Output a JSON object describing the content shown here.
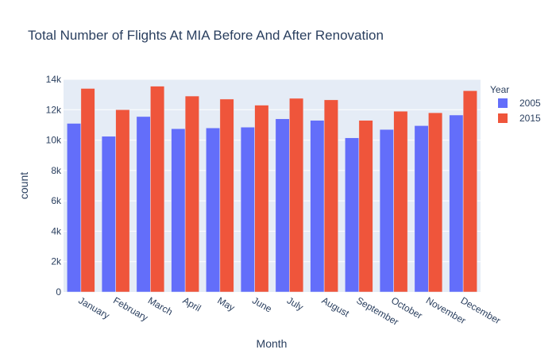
{
  "chart_data": {
    "type": "bar",
    "title": "Total Number of Flights At MIA Before And After Renovation",
    "xlabel": "Month",
    "ylabel": "count",
    "ylim": [
      0,
      14000
    ],
    "yticks": [
      0,
      2000,
      4000,
      6000,
      8000,
      10000,
      12000,
      14000
    ],
    "ytick_labels": [
      "0",
      "2k",
      "4k",
      "6k",
      "8k",
      "10k",
      "12k",
      "14k"
    ],
    "categories": [
      "January",
      "February",
      "March",
      "April",
      "May",
      "June",
      "July",
      "August",
      "September",
      "October",
      "November",
      "December"
    ],
    "legend": {
      "title": "Year",
      "position": "right"
    },
    "grid": true,
    "series": [
      {
        "name": "2005",
        "color": "#636efa",
        "values": [
          11100,
          10250,
          11550,
          10750,
          10800,
          10850,
          11400,
          11300,
          10150,
          10700,
          10950,
          11650
        ]
      },
      {
        "name": "2015",
        "color": "#ef553b",
        "values": [
          13400,
          12000,
          13550,
          12900,
          12700,
          12300,
          12750,
          12650,
          11300,
          11900,
          11800,
          13250
        ]
      }
    ]
  }
}
